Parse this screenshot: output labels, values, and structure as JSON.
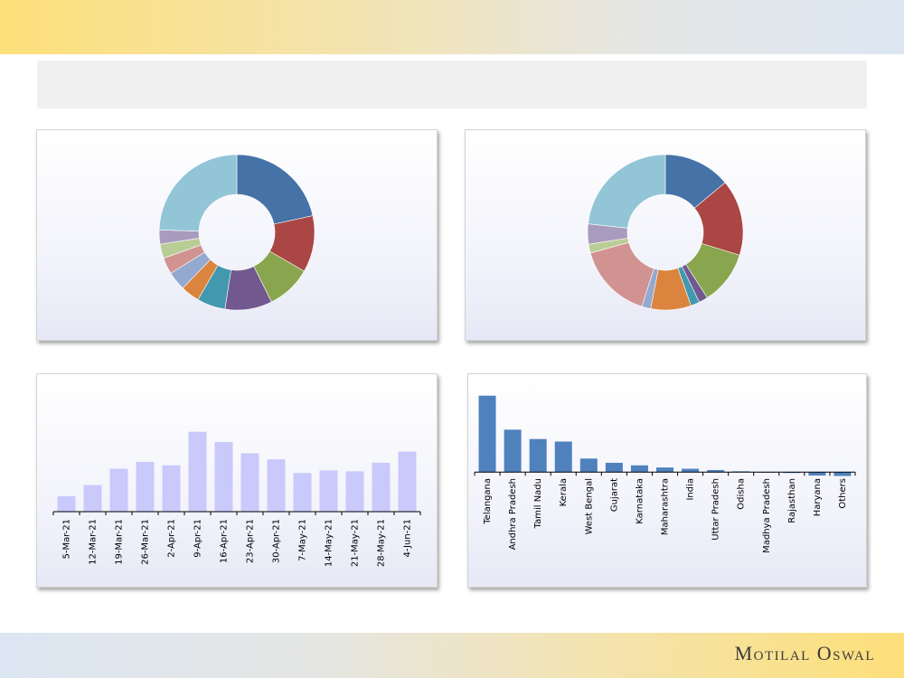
{
  "brand": {
    "name": "Motilal Oswal"
  },
  "chart_data": [
    {
      "type": "pie",
      "donut": true,
      "values": [
        22,
        12,
        9.5,
        10,
        6,
        4,
        4,
        3.5,
        3,
        3,
        25
      ],
      "colors": [
        "#4572a7",
        "#aa4643",
        "#89a54e",
        "#71588f",
        "#4198af",
        "#db843d",
        "#93a9cf",
        "#d19392",
        "#b9cd96",
        "#a99bbd",
        "#92c5d6"
      ]
    },
    {
      "type": "pie",
      "donut": true,
      "values": [
        15,
        17,
        12,
        2,
        2,
        9,
        2,
        17,
        2,
        4.5,
        25
      ],
      "colors": [
        "#4572a7",
        "#aa4643",
        "#89a54e",
        "#71588f",
        "#4198af",
        "#db843d",
        "#93a9cf",
        "#d19392",
        "#b9cd96",
        "#a99bbd",
        "#92c5d6"
      ]
    },
    {
      "type": "bar",
      "categories": [
        "5-Mar-21",
        "12-Mar-21",
        "19-Mar-21",
        "26-Mar-21",
        "2-Apr-21",
        "9-Apr-21",
        "16-Apr-21",
        "23-Apr-21",
        "30-Apr-21",
        "7-May-21",
        "14-May-21",
        "21-May-21",
        "28-May-21",
        "4-Jun-21"
      ],
      "values": [
        18,
        31,
        50,
        58,
        54,
        93,
        81,
        68,
        61,
        45,
        48,
        47,
        57,
        70
      ],
      "ylim": [
        0,
        100
      ],
      "color": "#c9c9fb"
    },
    {
      "type": "bar",
      "categories": [
        "Telangana",
        "Andhra Pradesh",
        "Tamil Nadu",
        "Kerala",
        "West Bengal",
        "Gujarat",
        "Karnataka",
        "Maharashtra",
        "India",
        "Uttar Pradesh",
        "Odisha",
        "Madhya Pradesh",
        "Rajasthan",
        "Haryana",
        "Others"
      ],
      "values": [
        90,
        50,
        39,
        36,
        16,
        11,
        8,
        5.5,
        4,
        2.5,
        1,
        0,
        -1,
        -4,
        -4.5
      ],
      "ylim": [
        -5,
        95
      ],
      "color": "#4f81bd"
    }
  ]
}
